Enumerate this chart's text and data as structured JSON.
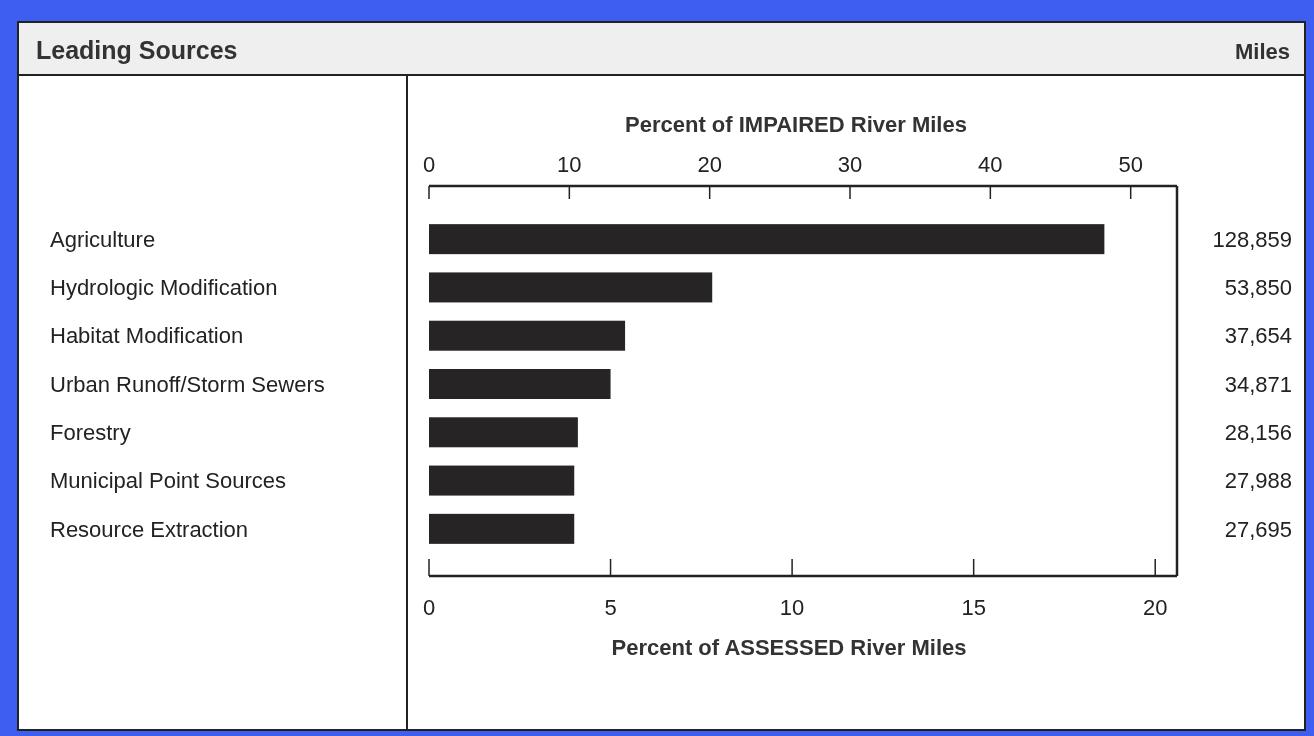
{
  "chart_data": {
    "type": "bar",
    "orientation": "horizontal",
    "title": "Leading Sources",
    "annotations": [
      "Miles",
      "128,859",
      "53,850",
      "37,654",
      "34,871",
      "28,156",
      "27,988",
      "27,695"
    ],
    "xlabel": "Percent of ASSESSED River Miles",
    "x2label": "Percent of IMPAIRED River Miles",
    "categories": [
      "Agriculture",
      "Hydrologic Modification",
      "Habitat Modification",
      "Urban Runoff/Storm Sewers",
      "Forestry",
      "Municipal Point Sources",
      "Resource Extraction"
    ],
    "values": [
      18.6,
      7.8,
      5.4,
      5.0,
      4.1,
      4.0,
      4.0
    ],
    "color": "#262425",
    "xlim": [
      0,
      20.6
    ],
    "xticks": [
      0,
      5,
      10,
      15,
      20
    ],
    "x2lim": [
      0,
      53.3
    ],
    "x2ticks": [
      0,
      10,
      20,
      30,
      40,
      50
    ]
  }
}
